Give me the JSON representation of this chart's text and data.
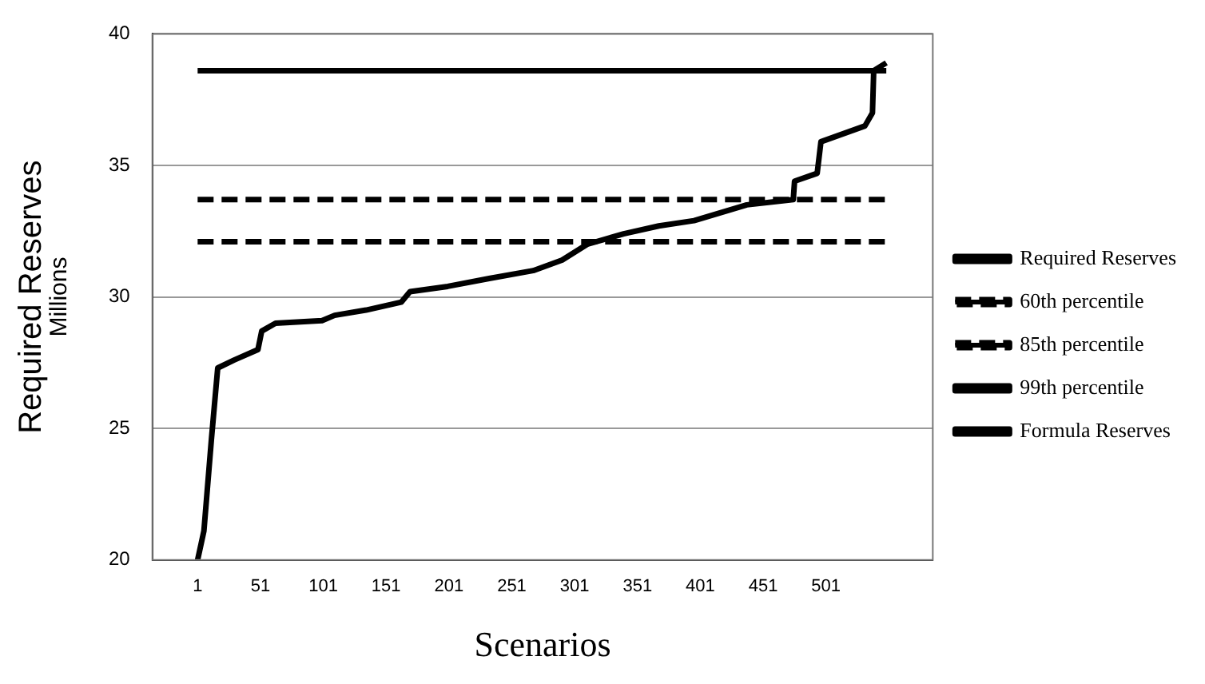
{
  "chart_data": {
    "type": "line",
    "xlabel": "Scenarios",
    "ylabel": "Required Reserves",
    "annotations": [
      "Millions"
    ],
    "xlim": [
      -35,
      586
    ],
    "xticks": [
      1,
      51,
      101,
      151,
      201,
      251,
      301,
      351,
      401,
      451,
      501
    ],
    "ylim": [
      20,
      40
    ],
    "yticks": [
      20,
      25,
      30,
      35,
      40
    ],
    "grid": "y",
    "legend": "right",
    "marker": "none",
    "series": [
      {
        "name": "Required Reserves",
        "color": "#000000",
        "line_style": "solid",
        "x": [
          1,
          6,
          12,
          17,
          30,
          49,
          52,
          63,
          100,
          110,
          135,
          163,
          170,
          200,
          233,
          268,
          291,
          311,
          340,
          368,
          396,
          438,
          475,
          476,
          494,
          497,
          532,
          538,
          539,
          549
        ],
        "values": [
          20.0,
          21.1,
          24.6,
          27.3,
          27.6,
          28.0,
          28.7,
          29.0,
          29.1,
          29.3,
          29.5,
          29.8,
          30.2,
          30.4,
          30.7,
          31.0,
          31.4,
          32.0,
          32.4,
          32.7,
          32.9,
          33.5,
          33.7,
          34.4,
          34.7,
          35.9,
          36.5,
          37.0,
          38.6,
          38.9
        ]
      },
      {
        "name": "60th percentile",
        "color": "#000000",
        "line_style": "dashed",
        "x": [
          1,
          549
        ],
        "values": [
          32.1,
          32.1
        ]
      },
      {
        "name": "85th percentile",
        "color": "#000000",
        "line_style": "dashed",
        "x": [
          1,
          549
        ],
        "values": [
          33.7,
          33.7
        ]
      },
      {
        "name": "99th percentile",
        "color": "#000000",
        "line_style": "solid",
        "x": [
          1,
          549
        ],
        "values": [
          38.6,
          38.6
        ]
      },
      {
        "name": "Formula Reserves",
        "color": "#000000",
        "line_style": "solid"
      }
    ]
  }
}
